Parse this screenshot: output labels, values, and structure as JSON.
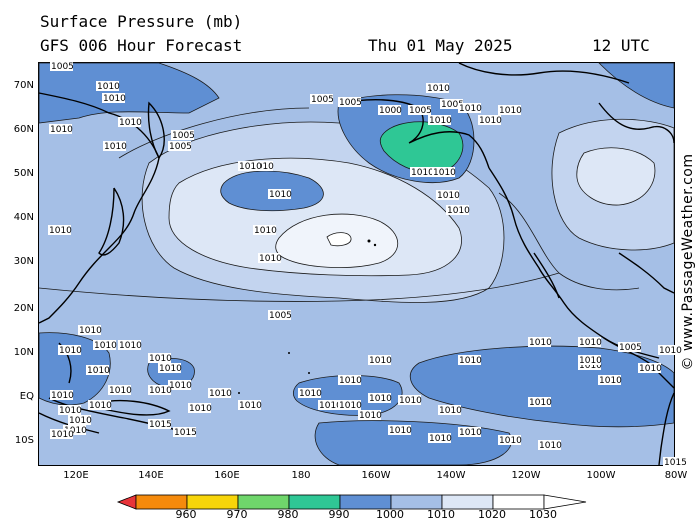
{
  "header": {
    "title": "Surface Pressure (mb)",
    "subtitle": "GFS 006 Hour Forecast",
    "date": "Thu 01 May 2025",
    "time": "12 UTC"
  },
  "watermark": "© www.PassageWeather.com",
  "map": {
    "lat_labels": [
      "70N",
      "60N",
      "50N",
      "40N",
      "30N",
      "20N",
      "10N",
      "EQ",
      "10S"
    ],
    "lon_labels": [
      "120E",
      "140E",
      "160E",
      "180",
      "160W",
      "140W",
      "120W",
      "100W",
      "80W"
    ],
    "isobar_labels": [
      "1005",
      "1010",
      "1010",
      "1010",
      "1005",
      "1010",
      "1010",
      "1005",
      "1010",
      "1010",
      "1000",
      "1005",
      "1010",
      "1010",
      "1005",
      "1005",
      "1010",
      "1010",
      "1010",
      "1010",
      "1010",
      "1010",
      "1010",
      "1010",
      "1005",
      "1010",
      "1010",
      "1005",
      "1010",
      "1010",
      "1010",
      "1010",
      "1005",
      "1010",
      "1010",
      "1010",
      "1010",
      "1010",
      "1010",
      "1010",
      "1010",
      "1010",
      "1010",
      "1010",
      "1010",
      "1010",
      "1010",
      "1010",
      "1010",
      "1010",
      "1010",
      "1010",
      "1010",
      "1015",
      "1015",
      "1010",
      "1010",
      "1010",
      "1010",
      "1010",
      "1010",
      "1010",
      "1010",
      "1010",
      "1010",
      "1010",
      "1010",
      "1010",
      "1010",
      "1010",
      "1010",
      "1010",
      "1010",
      "1010",
      "1015"
    ]
  },
  "colorbar": {
    "levels": [
      "960",
      "970",
      "980",
      "990",
      "1000",
      "1010",
      "1020",
      "1030"
    ],
    "colors": [
      "#e8343a",
      "#f58a0c",
      "#f7d50a",
      "#6fd66b",
      "#2fc795",
      "#5f8fd3",
      "#a5bfe6",
      "#dde7f6",
      "#ffffff"
    ]
  },
  "palette": {
    "band_1000": "#2fc795",
    "band_1005": "#5f8fd3",
    "band_1010": "#a5bfe6",
    "band_1015": "#c3d4ef",
    "band_1020": "#dde7f6",
    "band_1025": "#f0f4fb"
  }
}
